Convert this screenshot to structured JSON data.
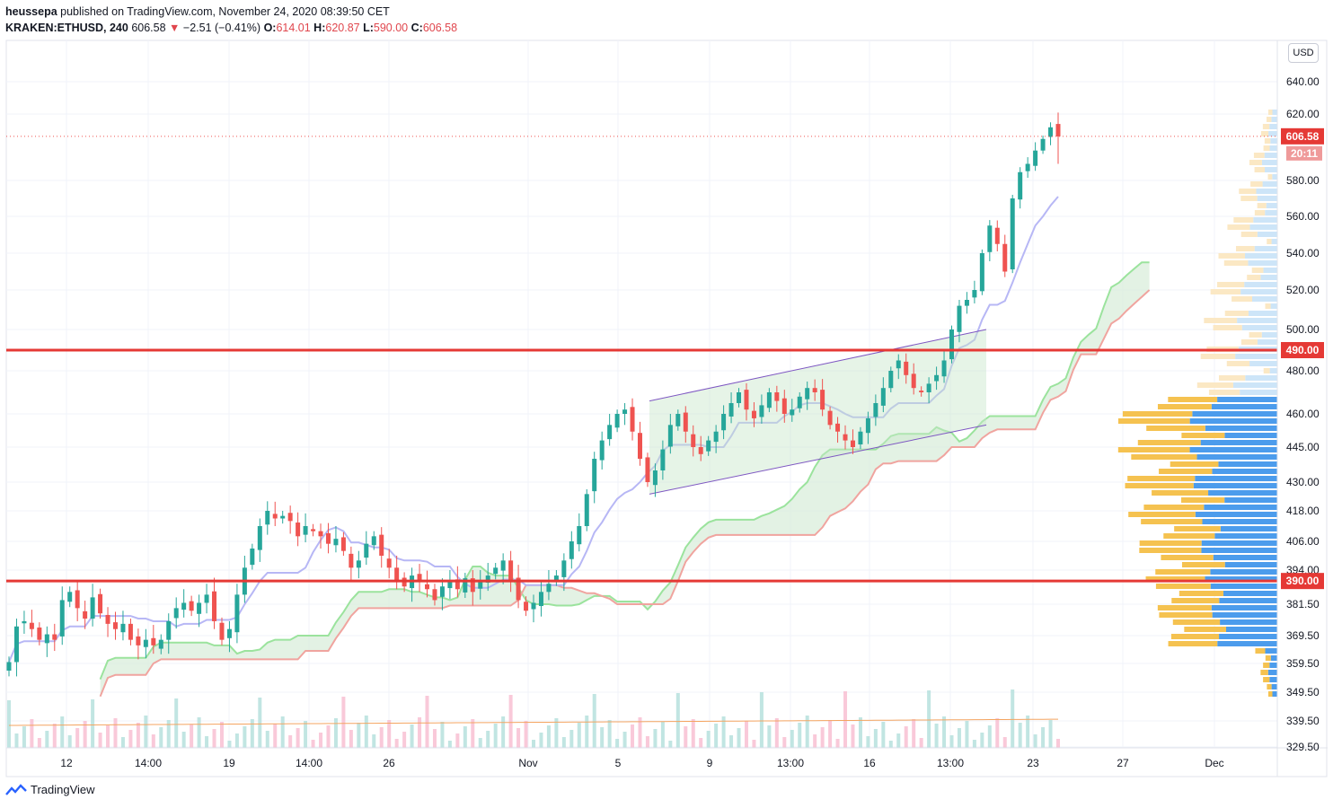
{
  "header": {
    "user": "heussepa",
    "published": "published on TradingView.com, November 24, 2020 08:39:50 CET",
    "symbol": "KRAKEN:ETHUSD, 240",
    "last": "606.58",
    "change": "−2.51 (−0.41%)",
    "o_label": "O:",
    "o_val": "614.01",
    "h_label": "H:",
    "h_val": "620.87",
    "l_label": "L:",
    "l_val": "590.00",
    "c_label": "C:",
    "c_val": "606.58",
    "down_arrow": "▼"
  },
  "price_axis": {
    "currency": "USD",
    "last_price_tag": "606.58",
    "countdown_tag": "20:11",
    "hline_490_tag": "490.00",
    "hline_390_tag": "390.00"
  },
  "footer": {
    "brand": "TradingView"
  },
  "colors": {
    "up": "#26a69a",
    "down": "#ef5350",
    "hline": "#e53935",
    "base_line": "#b7b7f5",
    "cloud": "#d7ecd8",
    "span_a": "#9be39d",
    "span_b": "#f0a49f",
    "profile_blue": "#4c9cec",
    "profile_yellow": "#f5c250",
    "channel": "#7e57c2"
  },
  "chart_data": {
    "type": "candlestick",
    "symbol": "KRAKEN:ETHUSD",
    "interval": "240",
    "y_ticks": [
      "640.00",
      "620.00",
      "580.00",
      "560.00",
      "540.00",
      "520.00",
      "500.00",
      "480.00",
      "460.00",
      "445.00",
      "430.00",
      "418.00",
      "406.00",
      "394.00",
      "381.50",
      "369.50",
      "359.50",
      "349.50",
      "339.50",
      "329.50"
    ],
    "x_ticks": [
      "12",
      "14:00",
      "19",
      "14:00",
      "26",
      "Nov",
      "5",
      "9",
      "13:00",
      "16",
      "13:00",
      "23",
      "27",
      "Dec"
    ],
    "horizontal_lines": [
      490.0,
      390.0
    ],
    "last_price": 606.58,
    "ohlc": {
      "open": 614.01,
      "high": 620.87,
      "low": 590.0,
      "close": 606.58
    },
    "closes": [
      360,
      373,
      375,
      372,
      368,
      370,
      368,
      383,
      386,
      380,
      376,
      384,
      378,
      374,
      372,
      374,
      368,
      366,
      368,
      366,
      368,
      375,
      380,
      382,
      379,
      382,
      385,
      375,
      368,
      372,
      385,
      395,
      403,
      412,
      418,
      415,
      416,
      414,
      408,
      412,
      410,
      408,
      405,
      407,
      402,
      395,
      398,
      405,
      408,
      400,
      395,
      390,
      388,
      392,
      390,
      387,
      383,
      388,
      390,
      387,
      391,
      386,
      390,
      392,
      395,
      398,
      390,
      383,
      379,
      382,
      386,
      389,
      392,
      398,
      406,
      412,
      425,
      440,
      448,
      455,
      460,
      462,
      452,
      440,
      430,
      435,
      444,
      455,
      460,
      452,
      445,
      442,
      448,
      452,
      460,
      465,
      470,
      462,
      458,
      464,
      470,
      466,
      460,
      462,
      468,
      472,
      470,
      462,
      455,
      452,
      448,
      445,
      452,
      458,
      465,
      472,
      480,
      485,
      478,
      472,
      470,
      474,
      478,
      485,
      500,
      512,
      515,
      520,
      540,
      555,
      545,
      530,
      570,
      585,
      590,
      598,
      605,
      612,
      606.58
    ],
    "volume_ma": 339.5,
    "ichimoku": true,
    "ascending_channel": {
      "start_x": "5 Nov",
      "end_x": "20 Nov"
    },
    "volume_profile": true
  }
}
